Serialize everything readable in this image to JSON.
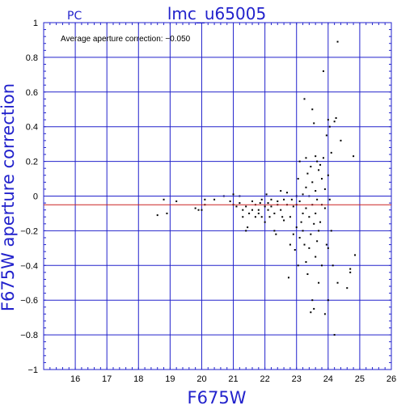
{
  "chart_data": {
    "type": "scatter",
    "title": "lmc_u65005",
    "corner_label": "PC",
    "xlabel": "F675W",
    "ylabel": "F675W aperture correction",
    "annotation": "Average aperture correction: −0.050",
    "xlim": [
      15,
      26
    ],
    "ylim": [
      -1,
      1
    ],
    "x_ticks": [
      16,
      17,
      18,
      19,
      20,
      21,
      22,
      23,
      24,
      25,
      26
    ],
    "y_ticks": [
      -1,
      -0.8,
      -0.6,
      -0.4,
      -0.2,
      0,
      0.2,
      0.4,
      0.6,
      0.8,
      1
    ],
    "y_tick_labels": [
      "−1",
      "−0.8",
      "−0.6",
      "−0.4",
      "−0.2",
      "0",
      "0.2",
      "0.4",
      "0.6",
      "0.8",
      "1"
    ],
    "grid": true,
    "reference_line": {
      "y": -0.05,
      "color": "#cc2222"
    },
    "zero_line": {
      "y": 0,
      "color": "#2222cc"
    },
    "colors": {
      "grid": "#2222cc",
      "points": "#000000",
      "text": "#2222cc"
    },
    "points": [
      [
        18.6,
        -0.11
      ],
      [
        18.8,
        -0.02
      ],
      [
        18.9,
        -0.1
      ],
      [
        19.2,
        -0.03
      ],
      [
        19.8,
        -0.07
      ],
      [
        19.9,
        -0.08
      ],
      [
        20.0,
        -0.08
      ],
      [
        20.1,
        -0.05
      ],
      [
        20.1,
        -0.02
      ],
      [
        20.4,
        -0.02
      ],
      [
        20.7,
        0.0
      ],
      [
        20.9,
        -0.03
      ],
      [
        21.0,
        -0.05
      ],
      [
        21.0,
        0.01
      ],
      [
        21.1,
        -0.06
      ],
      [
        21.2,
        0.0
      ],
      [
        21.2,
        -0.04
      ],
      [
        21.3,
        -0.08
      ],
      [
        21.3,
        -0.12
      ],
      [
        21.4,
        -0.2
      ],
      [
        21.4,
        -0.06
      ],
      [
        21.45,
        -0.18
      ],
      [
        21.5,
        -0.1
      ],
      [
        21.6,
        -0.03
      ],
      [
        21.6,
        -0.08
      ],
      [
        21.7,
        -0.12
      ],
      [
        21.7,
        -0.05
      ],
      [
        21.8,
        -0.1
      ],
      [
        21.8,
        -0.08
      ],
      [
        21.85,
        -0.04
      ],
      [
        21.9,
        -0.02
      ],
      [
        21.9,
        -0.12
      ],
      [
        22.0,
        -0.06
      ],
      [
        22.0,
        -0.15
      ],
      [
        22.05,
        0.01
      ],
      [
        22.1,
        -0.08
      ],
      [
        22.1,
        -0.04
      ],
      [
        22.15,
        -0.12
      ],
      [
        22.2,
        -0.06
      ],
      [
        22.2,
        -0.02
      ],
      [
        22.3,
        -0.1
      ],
      [
        22.3,
        -0.2
      ],
      [
        22.35,
        -0.22
      ],
      [
        22.4,
        -0.05
      ],
      [
        22.4,
        -0.03
      ],
      [
        22.5,
        0.03
      ],
      [
        22.5,
        -0.08
      ],
      [
        22.55,
        -0.12
      ],
      [
        22.6,
        -0.14
      ],
      [
        22.6,
        -0.02
      ],
      [
        22.7,
        0.02
      ],
      [
        22.7,
        -0.05
      ],
      [
        22.75,
        -0.47
      ],
      [
        22.8,
        -0.28
      ],
      [
        22.8,
        -0.12
      ],
      [
        22.85,
        -0.02
      ],
      [
        22.9,
        -0.06
      ],
      [
        22.9,
        -0.22
      ],
      [
        22.95,
        -0.31
      ],
      [
        23.0,
        0.0
      ],
      [
        23.0,
        -0.05
      ],
      [
        23.0,
        -0.18
      ],
      [
        23.05,
        0.1
      ],
      [
        23.05,
        -0.4
      ],
      [
        23.1,
        0.2
      ],
      [
        23.1,
        -0.03
      ],
      [
        23.1,
        -0.24
      ],
      [
        23.15,
        -0.15
      ],
      [
        23.2,
        0.01
      ],
      [
        23.2,
        -0.1
      ],
      [
        23.2,
        -0.2
      ],
      [
        23.25,
        0.56
      ],
      [
        23.25,
        -0.28
      ],
      [
        23.3,
        0.22
      ],
      [
        23.3,
        0.05
      ],
      [
        23.3,
        -0.07
      ],
      [
        23.3,
        -0.38
      ],
      [
        23.35,
        0.13
      ],
      [
        23.35,
        -0.45
      ],
      [
        23.4,
        0.0
      ],
      [
        23.4,
        -0.12
      ],
      [
        23.4,
        -0.3
      ],
      [
        23.45,
        0.17
      ],
      [
        23.45,
        -0.22
      ],
      [
        23.45,
        -0.67
      ],
      [
        23.5,
        0.5
      ],
      [
        23.5,
        0.08
      ],
      [
        23.5,
        -0.05
      ],
      [
        23.5,
        -0.6
      ],
      [
        23.55,
        0.42
      ],
      [
        23.55,
        -0.16
      ],
      [
        23.55,
        -0.65
      ],
      [
        23.6,
        0.23
      ],
      [
        23.6,
        0.03
      ],
      [
        23.6,
        -0.1
      ],
      [
        23.6,
        -0.35
      ],
      [
        23.65,
        0.2
      ],
      [
        23.65,
        -0.02
      ],
      [
        23.65,
        -0.26
      ],
      [
        23.7,
        0.15
      ],
      [
        23.7,
        -0.2
      ],
      [
        23.7,
        -0.5
      ],
      [
        23.75,
        0.18
      ],
      [
        23.75,
        -0.15
      ],
      [
        23.8,
        0.1
      ],
      [
        23.8,
        -0.05
      ],
      [
        23.8,
        -0.4
      ],
      [
        23.85,
        0.22
      ],
      [
        23.85,
        0.72
      ],
      [
        23.9,
        0.04
      ],
      [
        23.9,
        -0.07
      ],
      [
        23.9,
        -0.68
      ],
      [
        23.95,
        0.35
      ],
      [
        23.95,
        -0.28
      ],
      [
        24.0,
        0.44
      ],
      [
        24.0,
        0.12
      ],
      [
        24.0,
        -0.3
      ],
      [
        24.0,
        -0.6
      ],
      [
        24.05,
        0.4
      ],
      [
        24.05,
        -0.02
      ],
      [
        24.1,
        0.25
      ],
      [
        24.1,
        -0.2
      ],
      [
        24.15,
        -0.4
      ],
      [
        24.2,
        0.43
      ],
      [
        24.2,
        -0.8
      ],
      [
        24.25,
        0.45
      ],
      [
        24.3,
        0.89
      ],
      [
        24.3,
        -0.5
      ],
      [
        24.4,
        0.32
      ],
      [
        24.6,
        -0.53
      ],
      [
        24.7,
        -0.42
      ],
      [
        24.7,
        -0.44
      ],
      [
        24.8,
        0.23
      ],
      [
        24.85,
        -0.34
      ]
    ]
  }
}
